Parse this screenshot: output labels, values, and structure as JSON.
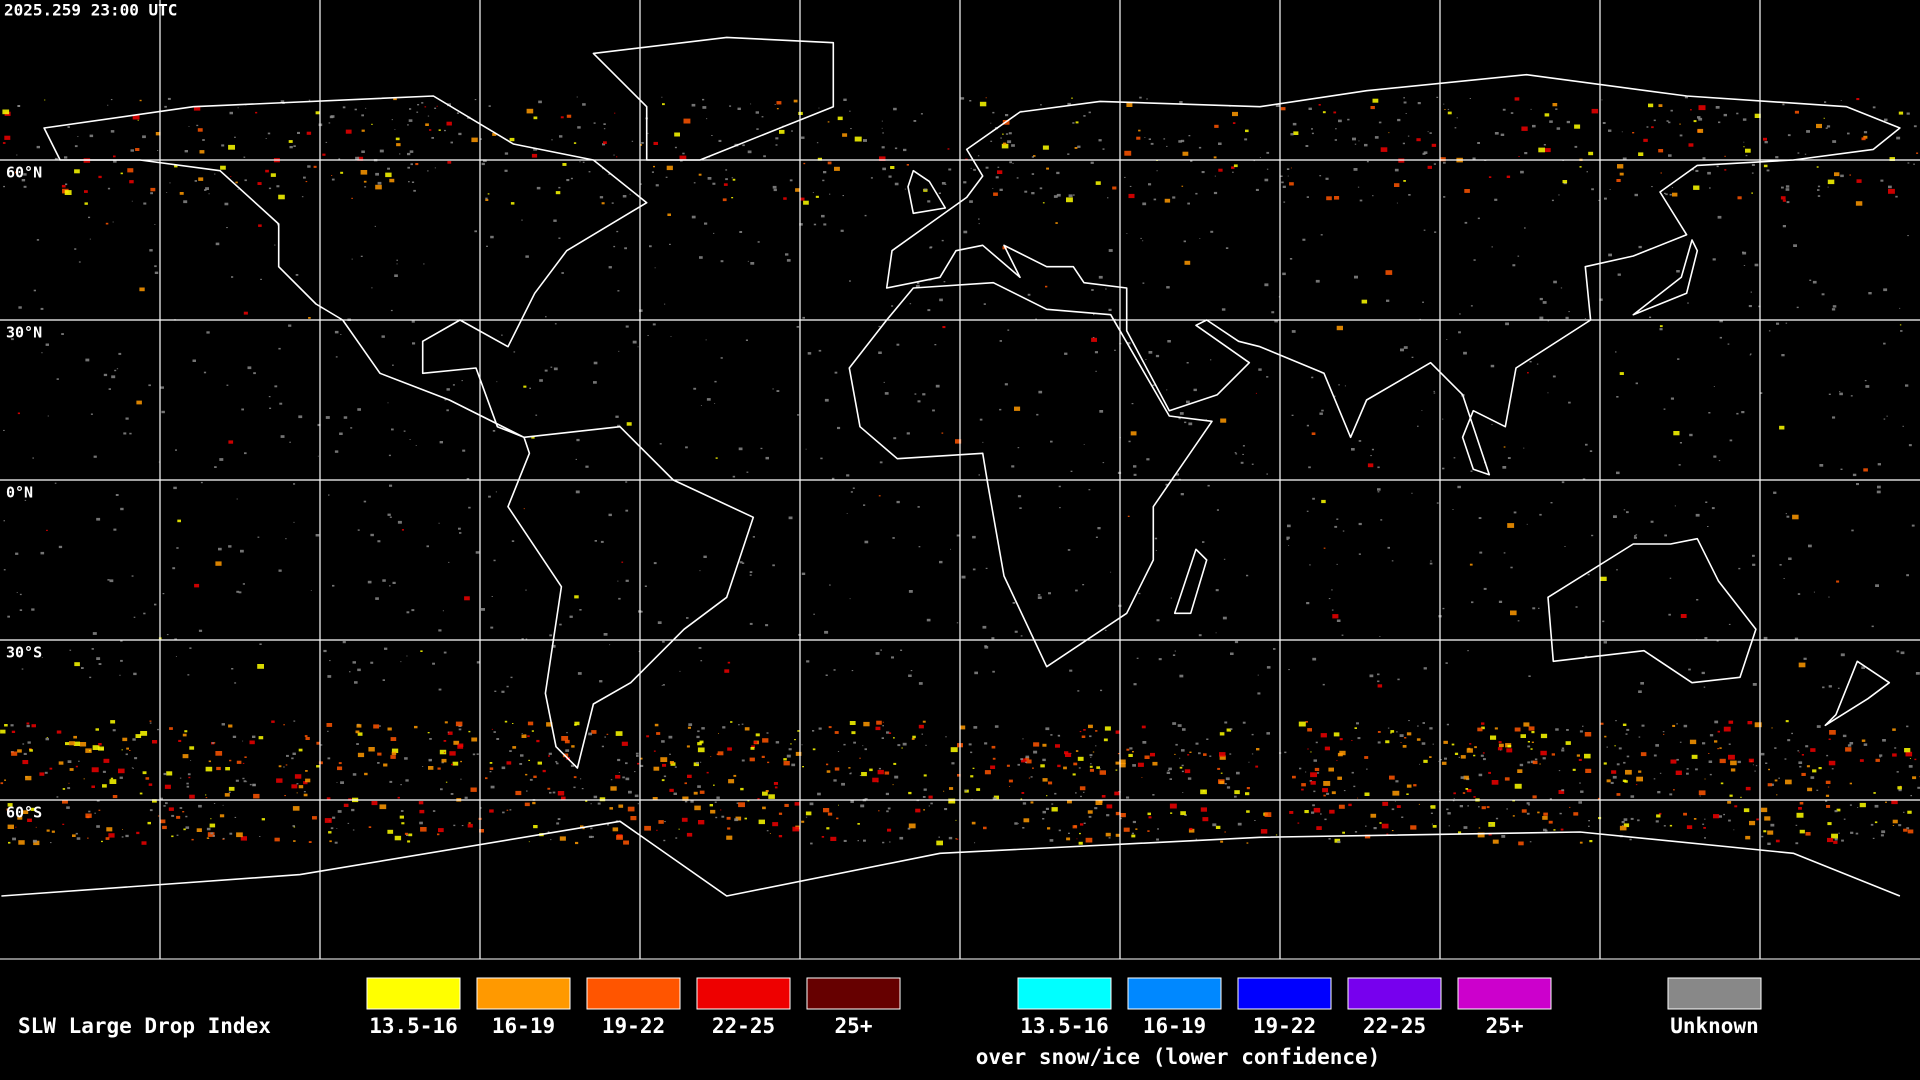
{
  "timestamp": "2025.259 23:00 UTC",
  "latitude_labels": [
    "60°N",
    "30°N",
    "0°N",
    "30°S",
    "60°S"
  ],
  "legend": {
    "title": "SLW Large Drop Index",
    "primary": [
      {
        "label": "13.5-16",
        "color": "#ffff00"
      },
      {
        "label": "16-19",
        "color": "#ff9900"
      },
      {
        "label": "19-22",
        "color": "#ff5500"
      },
      {
        "label": "22-25",
        "color": "#ee0000"
      },
      {
        "label": "25+",
        "color": "#660000"
      }
    ],
    "snow_ice": [
      {
        "label": "13.5-16",
        "color": "#00ffff"
      },
      {
        "label": "16-19",
        "color": "#0088ff"
      },
      {
        "label": "19-22",
        "color": "#0000ff"
      },
      {
        "label": "22-25",
        "color": "#7700ee"
      },
      {
        "label": "25+",
        "color": "#cc00cc"
      }
    ],
    "snow_ice_caption": "over snow/ice (lower confidence)",
    "unknown": {
      "label": "Unknown",
      "color": "#888888"
    }
  }
}
